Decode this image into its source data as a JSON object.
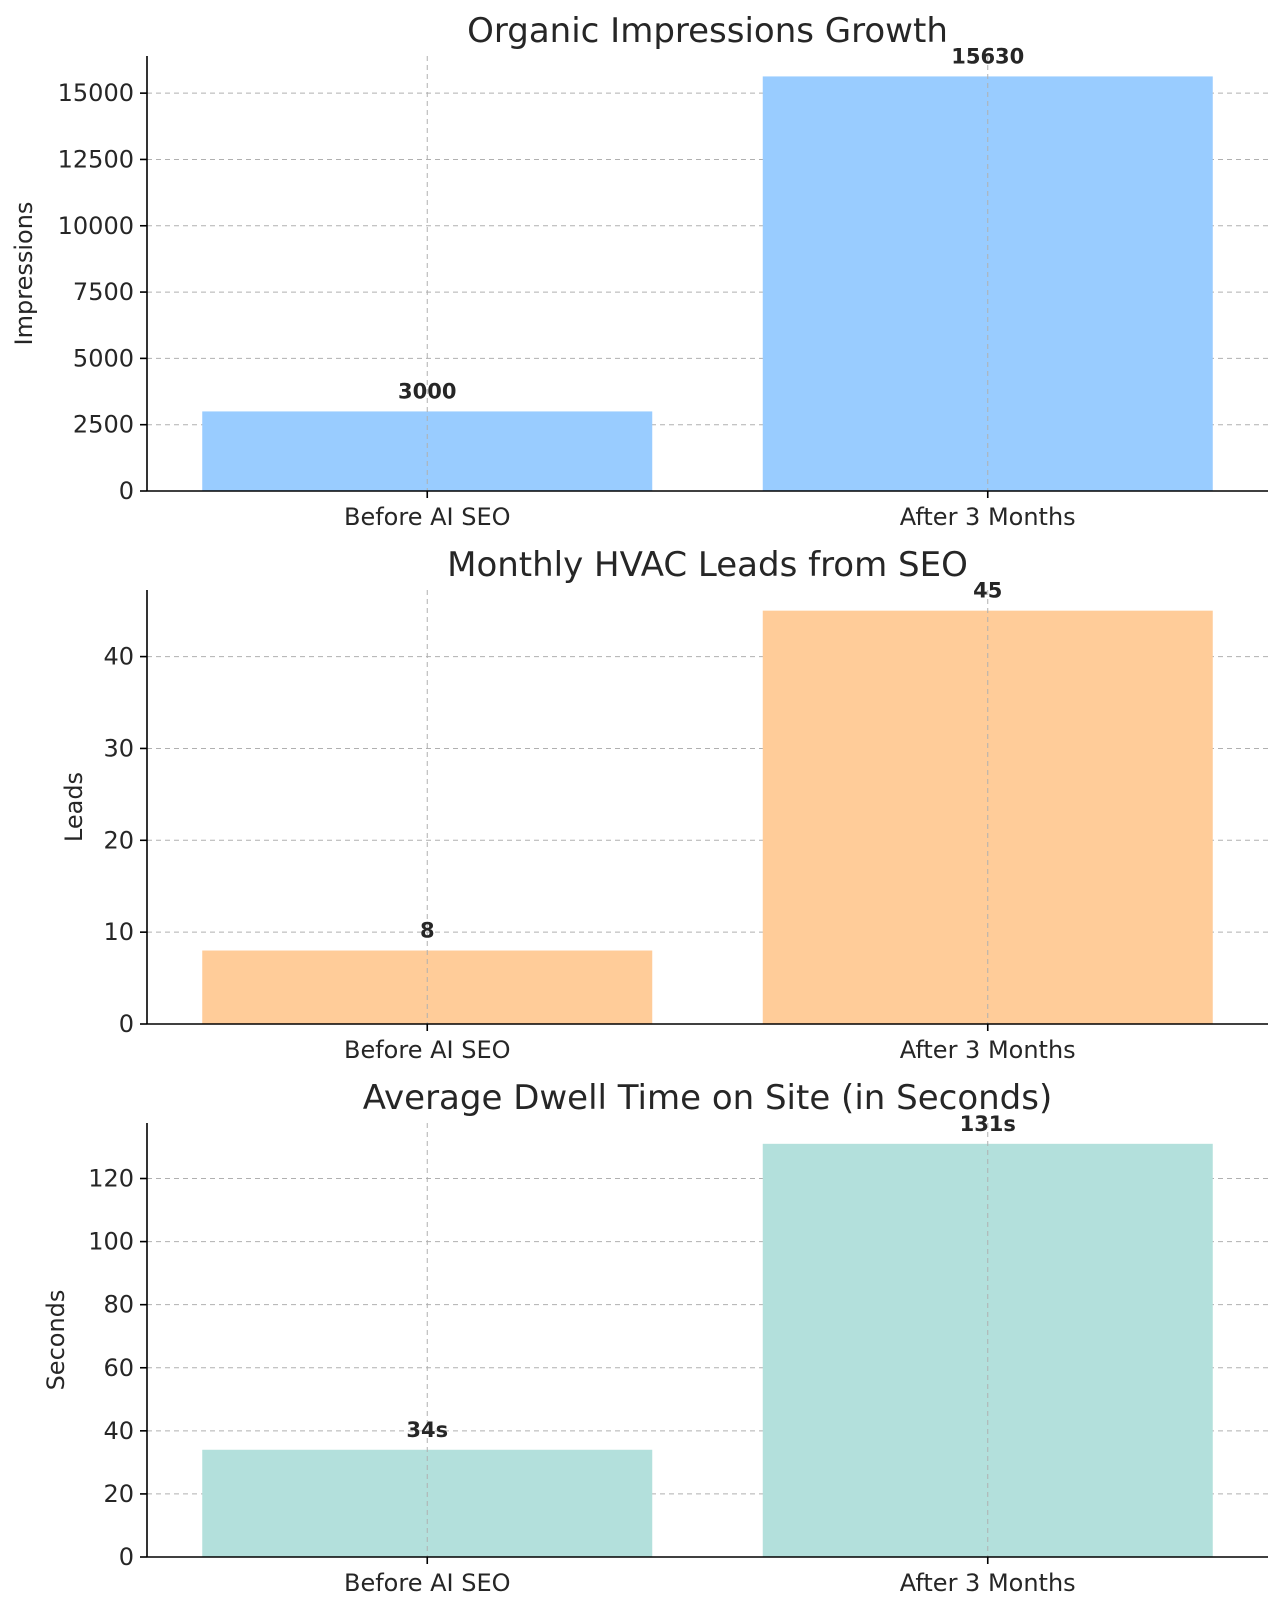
{
  "chart_data": [
    {
      "type": "bar",
      "title": "Organic Impressions Growth",
      "ylabel": "Impressions",
      "categories": [
        "Before AI SEO",
        "After 3 Months"
      ],
      "values": [
        3000,
        15630
      ],
      "value_labels": [
        "3000",
        "15630"
      ],
      "ylim": [
        0,
        16400
      ],
      "yticks": [
        0,
        2500,
        5000,
        7500,
        10000,
        12500,
        15000
      ],
      "color": "#99ccff",
      "grid": true
    },
    {
      "type": "bar",
      "title": "Monthly HVAC Leads from SEO",
      "ylabel": "Leads",
      "categories": [
        "Before AI SEO",
        "After 3 Months"
      ],
      "values": [
        8,
        45
      ],
      "value_labels": [
        "8",
        "45"
      ],
      "ylim": [
        0,
        47.25
      ],
      "yticks": [
        0,
        10,
        20,
        30,
        40
      ],
      "color": "#ffcc99",
      "grid": true
    },
    {
      "type": "bar",
      "title": "Average Dwell Time on Site (in Seconds)",
      "ylabel": "Seconds",
      "categories": [
        "Before AI SEO",
        "After 3 Months"
      ],
      "values": [
        34,
        131
      ],
      "value_labels": [
        "34s",
        "131s"
      ],
      "ylim": [
        0,
        137.6
      ],
      "yticks": [
        0,
        20,
        40,
        60,
        80,
        100,
        120
      ],
      "color": "#b3e0dc",
      "grid": true
    }
  ]
}
